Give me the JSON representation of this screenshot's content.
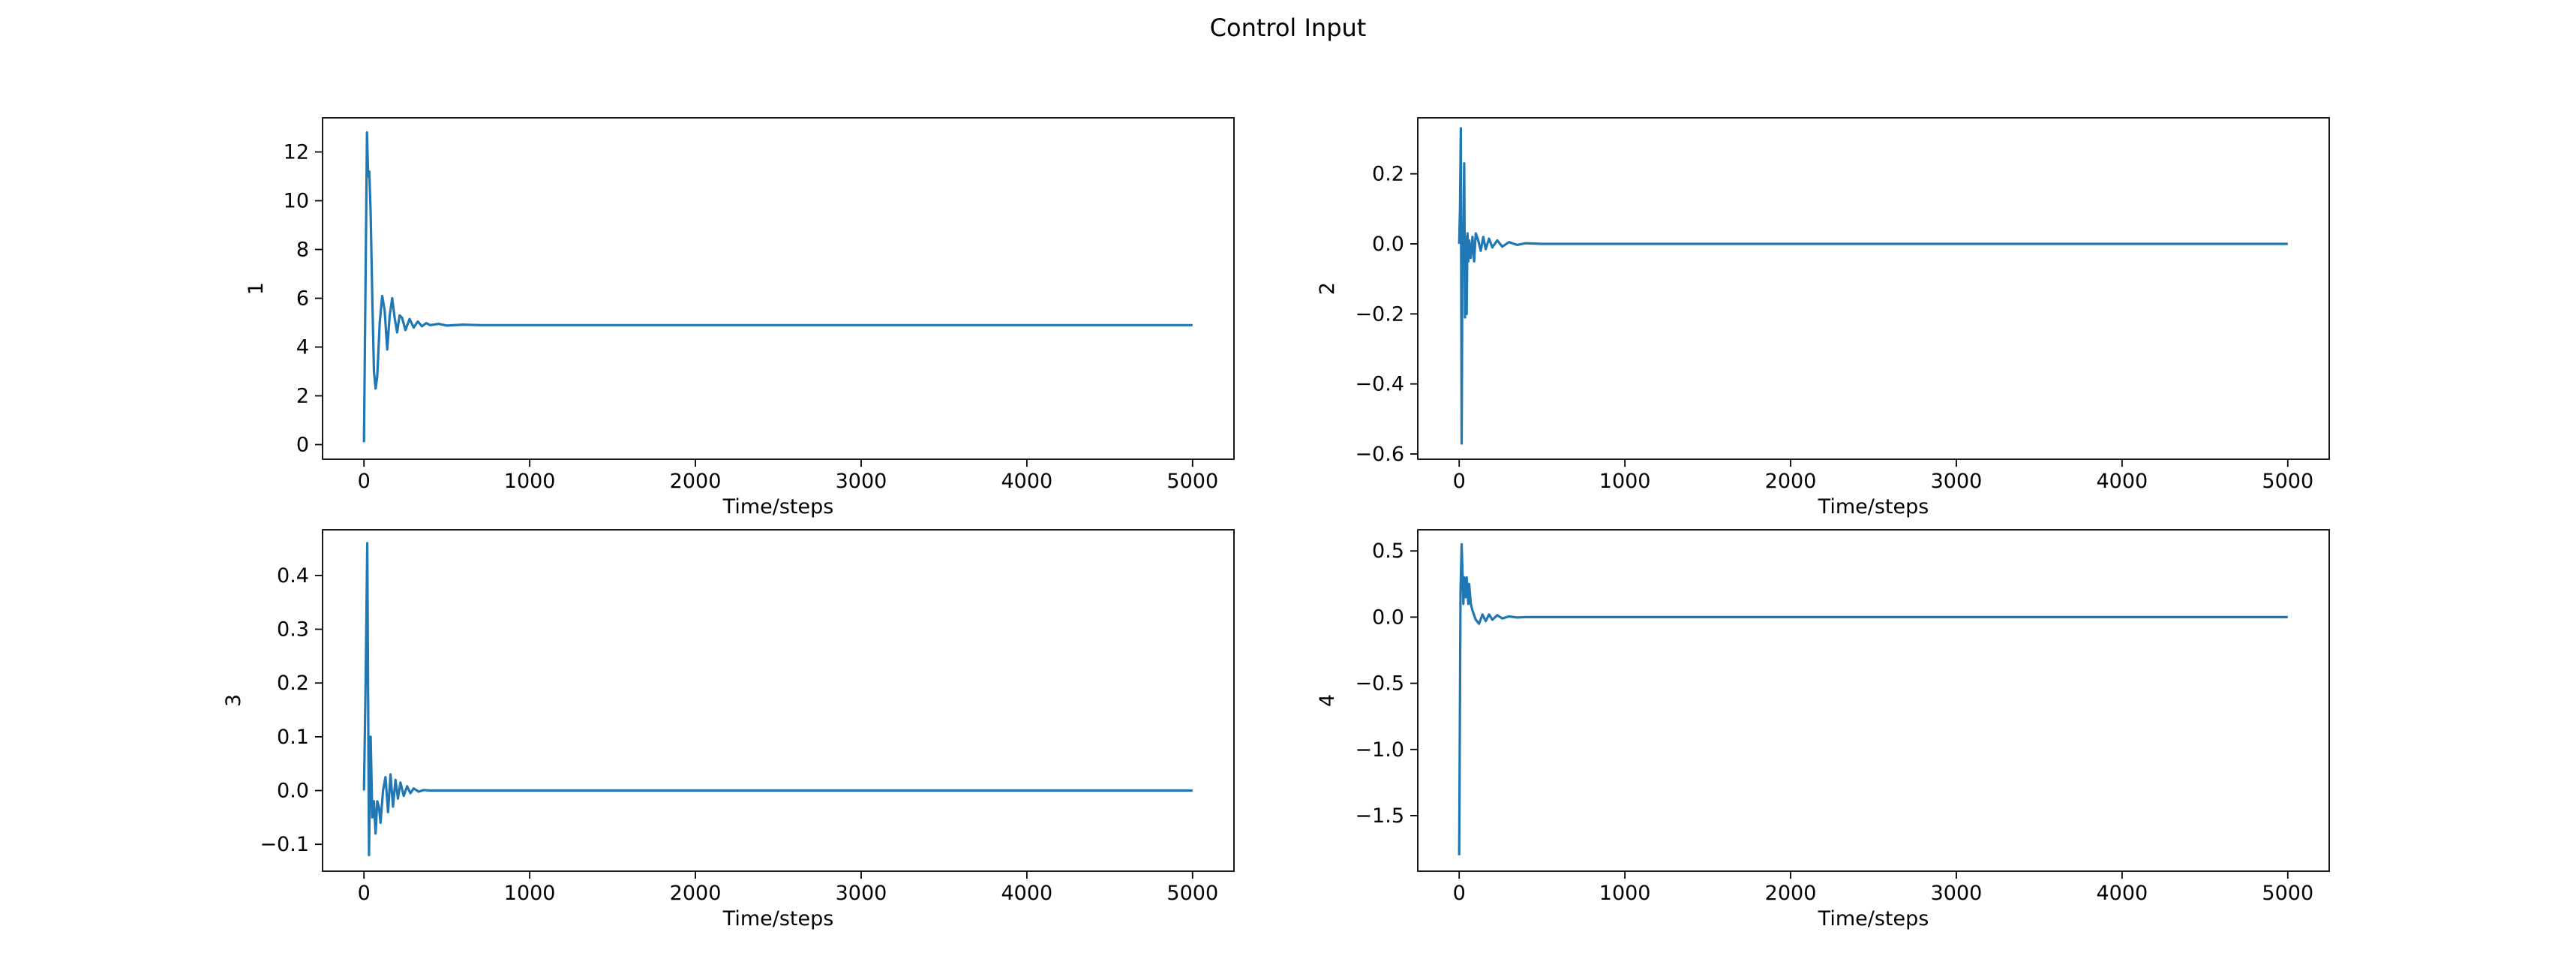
{
  "figure": {
    "title": "Control Input"
  },
  "chart_data": [
    {
      "type": "line",
      "title": "",
      "xlabel": "Time/steps",
      "ylabel": "1",
      "xlim": [
        -250,
        5250
      ],
      "ylim": [
        -0.6,
        13.4
      ],
      "xticks": [
        0,
        1000,
        2000,
        3000,
        4000,
        5000
      ],
      "yticks": [
        0,
        2,
        4,
        6,
        8,
        10,
        12
      ],
      "ytick_labels": [
        "0",
        "2",
        "4",
        "6",
        "8",
        "10",
        "12"
      ],
      "grid": false,
      "color": "#1f77b4",
      "series": [
        {
          "x": [
            0,
            10,
            18,
            25,
            32,
            40,
            50,
            60,
            70,
            80,
            95,
            110,
            125,
            140,
            155,
            170,
            185,
            200,
            215,
            230,
            250,
            275,
            300,
            325,
            350,
            375,
            400,
            450,
            500,
            600,
            700,
            800,
            1000,
            1500,
            2000,
            3000,
            4000,
            5000
          ],
          "y": [
            0.1,
            7.0,
            12.8,
            11.0,
            11.2,
            9.5,
            6.0,
            3.0,
            2.3,
            2.8,
            5.0,
            6.1,
            5.5,
            3.9,
            5.3,
            6.0,
            5.2,
            4.6,
            5.3,
            5.2,
            4.7,
            5.15,
            4.8,
            5.05,
            4.85,
            4.98,
            4.9,
            4.95,
            4.88,
            4.92,
            4.9,
            4.9,
            4.9,
            4.9,
            4.9,
            4.9,
            4.9,
            4.9
          ]
        }
      ]
    },
    {
      "type": "line",
      "title": "",
      "xlabel": "Time/steps",
      "ylabel": "2",
      "xlim": [
        -250,
        5250
      ],
      "ylim": [
        -0.615,
        0.36
      ],
      "xticks": [
        0,
        1000,
        2000,
        3000,
        4000,
        5000
      ],
      "yticks": [
        -0.6,
        -0.4,
        -0.2,
        0.0,
        0.2
      ],
      "ytick_labels": [
        "−0.6",
        "−0.4",
        "−0.2",
        "0.0",
        "0.2"
      ],
      "grid": false,
      "color": "#1f77b4",
      "series": [
        {
          "x": [
            0,
            5,
            10,
            15,
            20,
            25,
            30,
            35,
            40,
            45,
            50,
            55,
            60,
            70,
            80,
            90,
            100,
            115,
            130,
            145,
            160,
            180,
            200,
            230,
            260,
            300,
            350,
            400,
            500,
            700,
            1000,
            2000,
            3000,
            4000,
            5000
          ],
          "y": [
            0.0,
            0.1,
            0.33,
            -0.57,
            0.05,
            0.02,
            0.23,
            -0.21,
            0.02,
            -0.2,
            0.03,
            -0.05,
            0.01,
            -0.04,
            0.02,
            -0.05,
            0.03,
            0.01,
            -0.02,
            0.02,
            -0.015,
            0.015,
            -0.01,
            0.01,
            -0.008,
            0.005,
            -0.003,
            0.002,
            0.0,
            0.0,
            0.0,
            0.0,
            0.0,
            0.0,
            0.0
          ]
        }
      ]
    },
    {
      "type": "line",
      "title": "",
      "xlabel": "Time/steps",
      "ylabel": "3",
      "xlim": [
        -250,
        5250
      ],
      "ylim": [
        -0.15,
        0.485
      ],
      "xticks": [
        0,
        1000,
        2000,
        3000,
        4000,
        5000
      ],
      "yticks": [
        -0.1,
        0.0,
        0.1,
        0.2,
        0.3,
        0.4
      ],
      "ytick_labels": [
        "−0.1",
        "0.0",
        "0.1",
        "0.2",
        "0.3",
        "0.4"
      ],
      "grid": false,
      "color": "#1f77b4",
      "series": [
        {
          "x": [
            0,
            10,
            20,
            30,
            40,
            50,
            60,
            70,
            80,
            90,
            100,
            115,
            130,
            145,
            160,
            175,
            190,
            205,
            220,
            240,
            260,
            280,
            300,
            330,
            360,
            400,
            450,
            500,
            600,
            1000,
            2000,
            3000,
            4000,
            5000
          ],
          "y": [
            0.0,
            0.2,
            0.46,
            -0.12,
            0.1,
            -0.05,
            -0.02,
            -0.08,
            -0.02,
            -0.03,
            -0.06,
            0.0,
            0.025,
            -0.04,
            0.03,
            -0.03,
            0.02,
            -0.015,
            0.015,
            -0.01,
            0.008,
            -0.005,
            0.004,
            -0.002,
            0.001,
            0.0,
            0.0,
            0.0,
            0.0,
            0.0,
            0.0,
            0.0,
            0.0,
            0.0
          ]
        }
      ]
    },
    {
      "type": "line",
      "title": "",
      "xlabel": "Time/steps",
      "ylabel": "4",
      "xlim": [
        -250,
        5250
      ],
      "ylim": [
        -1.92,
        0.66
      ],
      "xticks": [
        0,
        1000,
        2000,
        3000,
        4000,
        5000
      ],
      "yticks": [
        -1.5,
        -1.0,
        -0.5,
        0.0,
        0.5
      ],
      "ytick_labels": [
        "−1.5",
        "−1.0",
        "−0.5",
        "0.0",
        "0.5"
      ],
      "grid": false,
      "color": "#1f77b4",
      "series": [
        {
          "x": [
            0,
            8,
            15,
            25,
            30,
            40,
            45,
            55,
            60,
            70,
            80,
            100,
            120,
            140,
            160,
            180,
            200,
            230,
            260,
            300,
            350,
            400,
            500,
            700,
            1000,
            2000,
            3000,
            4000,
            5000
          ],
          "y": [
            -1.8,
            0.2,
            0.55,
            0.1,
            0.3,
            0.15,
            0.3,
            0.1,
            0.25,
            0.1,
            0.05,
            -0.02,
            -0.05,
            0.02,
            -0.03,
            0.02,
            -0.02,
            0.015,
            -0.01,
            0.005,
            -0.003,
            0.0,
            0.0,
            0.0,
            0.0,
            0.0,
            0.0,
            0.0,
            0.0
          ]
        }
      ]
    }
  ]
}
